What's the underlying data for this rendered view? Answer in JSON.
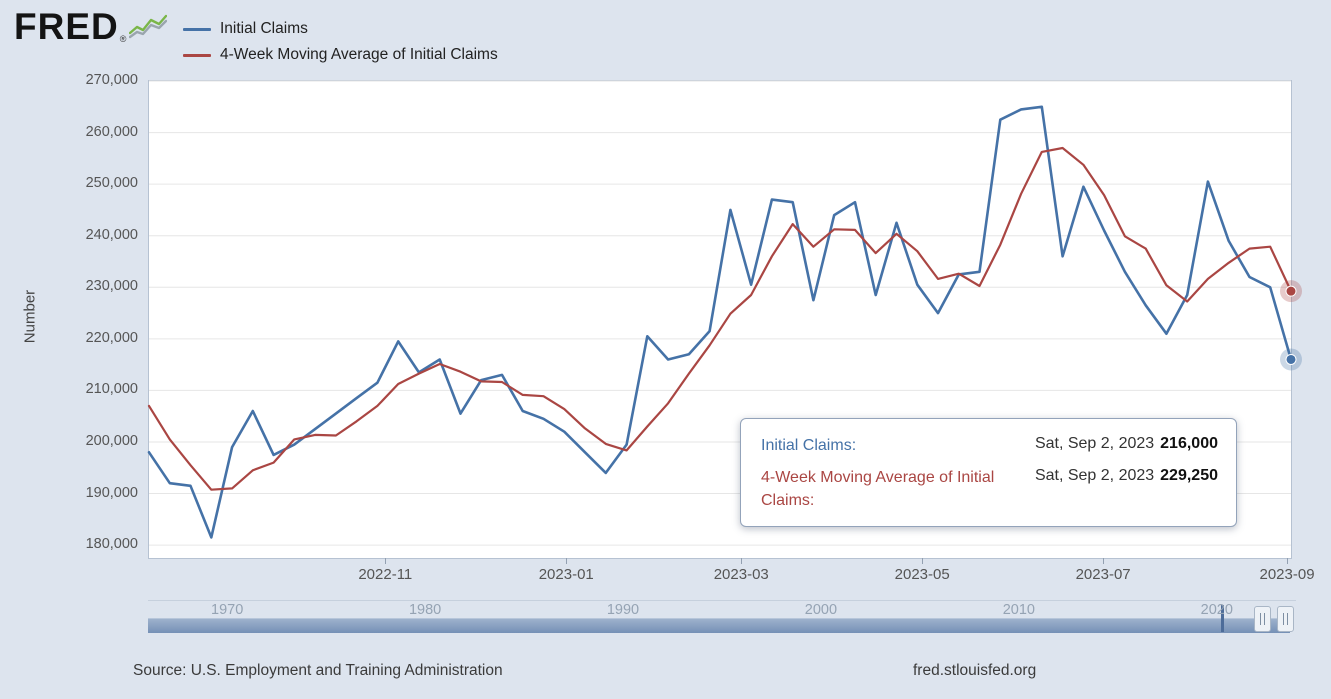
{
  "header": {
    "logo_text": "FRED",
    "registered_mark": "®",
    "legend": [
      {
        "label": "Initial Claims",
        "color": "#4572a7"
      },
      {
        "label": "4-Week Moving Average of Initial Claims",
        "color": "#aa4643"
      }
    ]
  },
  "chart_data": {
    "type": "line",
    "title": "",
    "ylabel": "Number",
    "xlabel": "",
    "grid": "horizontal",
    "legend_position": "top-left",
    "ylim": [
      177500,
      270000
    ],
    "y_ticks": [
      180000,
      190000,
      200000,
      210000,
      220000,
      230000,
      240000,
      250000,
      260000,
      270000
    ],
    "y_tick_labels": [
      "180,000",
      "190,000",
      "200,000",
      "210,000",
      "220,000",
      "230,000",
      "240,000",
      "250,000",
      "260,000",
      "270,000"
    ],
    "x_tick_labels": [
      "2022-11",
      "2023-01",
      "2023-03",
      "2023-05",
      "2023-07",
      "2023-09"
    ],
    "dates": [
      "2022-08-13",
      "2022-08-20",
      "2022-08-27",
      "2022-09-03",
      "2022-09-10",
      "2022-09-17",
      "2022-09-24",
      "2022-10-01",
      "2022-10-08",
      "2022-10-15",
      "2022-10-22",
      "2022-10-29",
      "2022-11-05",
      "2022-11-12",
      "2022-11-19",
      "2022-11-26",
      "2022-12-03",
      "2022-12-10",
      "2022-12-17",
      "2022-12-24",
      "2022-12-31",
      "2023-01-07",
      "2023-01-14",
      "2023-01-21",
      "2023-01-28",
      "2023-02-04",
      "2023-02-11",
      "2023-02-18",
      "2023-02-25",
      "2023-03-04",
      "2023-03-11",
      "2023-03-18",
      "2023-03-25",
      "2023-04-01",
      "2023-04-08",
      "2023-04-15",
      "2023-04-22",
      "2023-04-29",
      "2023-05-06",
      "2023-05-13",
      "2023-05-20",
      "2023-05-27",
      "2023-06-03",
      "2023-06-10",
      "2023-06-17",
      "2023-06-24",
      "2023-07-01",
      "2023-07-08",
      "2023-07-15",
      "2023-07-22",
      "2023-07-29",
      "2023-08-05",
      "2023-08-12",
      "2023-08-19",
      "2023-08-26",
      "2023-09-02"
    ],
    "series": [
      {
        "name": "Initial Claims",
        "color": "#4572a7",
        "values": [
          198000,
          192000,
          191500,
          181500,
          199000,
          206000,
          197500,
          199500,
          202500,
          205500,
          208500,
          211500,
          219500,
          213500,
          216000,
          205500,
          212000,
          213000,
          206000,
          204500,
          202000,
          198000,
          194000,
          199500,
          220500,
          216000,
          217000,
          221500,
          245000,
          230500,
          247000,
          246500,
          227500,
          244000,
          246500,
          228500,
          242500,
          230500,
          225000,
          232500,
          233000,
          262500,
          264500,
          265000,
          236000,
          249500,
          241000,
          233000,
          226500,
          221000,
          228500,
          250500,
          239000,
          232000,
          230000,
          216000
        ]
      },
      {
        "name": "4-Week Moving Average of Initial Claims",
        "color": "#aa4643",
        "values": [
          207000,
          200500,
          195500,
          190750,
          191000,
          194500,
          196000,
          200500,
          201375,
          201250,
          204000,
          207000,
          211250,
          213250,
          215125,
          213625,
          211750,
          211625,
          209125,
          208875,
          206375,
          202625,
          199625,
          198375,
          203000,
          207500,
          213250,
          218750,
          224875,
          228500,
          236000,
          242250,
          237875,
          241250,
          241125,
          236625,
          240375,
          237000,
          231625,
          232625,
          230250,
          238250,
          248125,
          256250,
          257000,
          253750,
          247875,
          239875,
          237500,
          230375,
          227250,
          231625,
          234750,
          237500,
          237875,
          229250
        ]
      }
    ],
    "last_point": {
      "date_label": "Sat, Sep 2, 2023",
      "initial_claims": 216000,
      "four_week_moving_average": 229250
    }
  },
  "tooltip": {
    "rows": [
      {
        "label": "Initial Claims:",
        "date": "Sat, Sep 2, 2023",
        "value": "216,000",
        "color": "#4572a7"
      },
      {
        "label": "4-Week Moving Average of Initial Claims:",
        "date": "Sat, Sep 2, 2023",
        "value": "229,250",
        "color": "#aa4643"
      }
    ]
  },
  "navigator": {
    "year_labels": [
      "1970",
      "1980",
      "1990",
      "2000",
      "2010",
      "2020"
    ],
    "year_start": 1966,
    "year_end": 2023.7,
    "spike_year": 2020.2
  },
  "footer": {
    "source": "Source: U.S. Employment and Training Administration",
    "site": "fred.stlouisfed.org"
  }
}
